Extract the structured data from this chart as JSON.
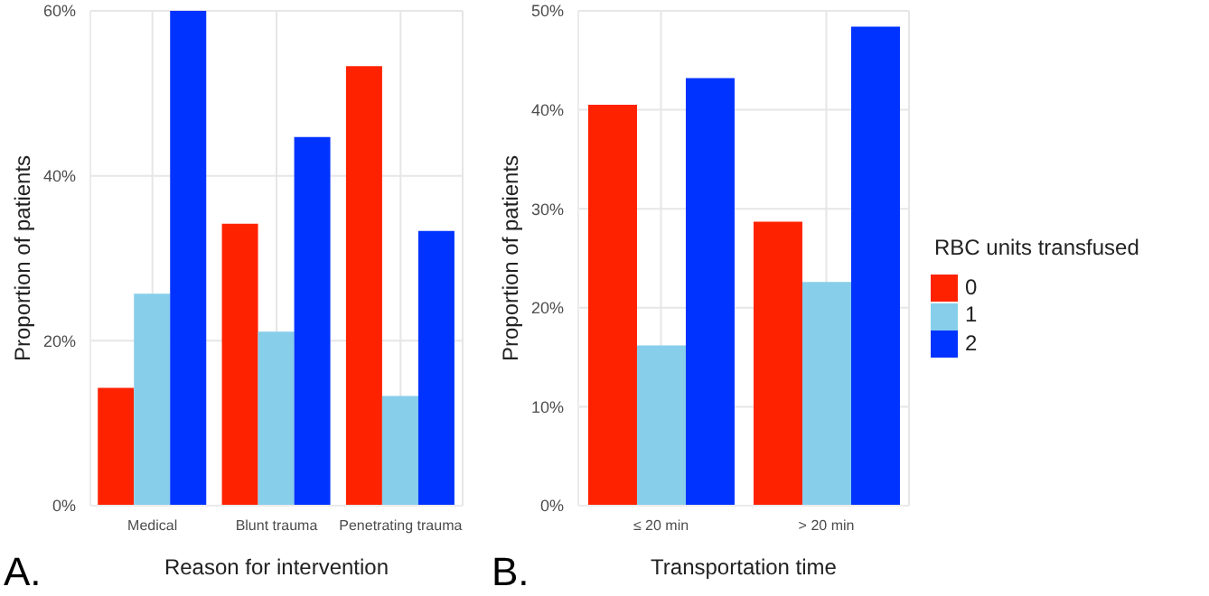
{
  "chart_data": [
    {
      "type": "bar",
      "categories": [
        "Medical",
        "Blunt trauma",
        "Penetrating trauma"
      ],
      "xlabel": "Reason for intervention",
      "ylabel": "Proportion of patients",
      "annotations": [
        "A."
      ],
      "series": [
        {
          "color": "#ff2200",
          "values": [
            14.3,
            34.2,
            53.3
          ]
        },
        {
          "color": "#87ceeb",
          "values": [
            25.7,
            21.1,
            13.3
          ]
        },
        {
          "color": "#0033ff",
          "values": [
            60.0,
            44.7,
            33.3
          ]
        }
      ],
      "ylim": [
        0,
        60
      ],
      "yticks": [
        {
          "value": 0,
          "label": "0%"
        },
        {
          "value": 20,
          "label": "20%"
        },
        {
          "value": 40,
          "label": "40%"
        },
        {
          "value": 60,
          "label": "60%"
        }
      ],
      "grid": true,
      "legend": false
    },
    {
      "type": "bar",
      "categories": [
        "≤ 20 min",
        "> 20 min"
      ],
      "xlabel": "Transportation time",
      "ylabel": "Proportion of patients",
      "annotations": [
        "B."
      ],
      "legend_title": "RBC units transfused",
      "series": [
        {
          "name": "0",
          "color": "#ff2200",
          "values": [
            40.5,
            28.7
          ]
        },
        {
          "name": "1",
          "color": "#87ceeb",
          "values": [
            16.2,
            22.6
          ]
        },
        {
          "name": "2",
          "color": "#0033ff",
          "values": [
            43.2,
            48.4
          ]
        }
      ],
      "ylim": [
        0,
        50
      ],
      "yticks": [
        {
          "value": 0,
          "label": "0%"
        },
        {
          "value": 10,
          "label": "10%"
        },
        {
          "value": 20,
          "label": "20%"
        },
        {
          "value": 30,
          "label": "30%"
        },
        {
          "value": 40,
          "label": "40%"
        },
        {
          "value": 50,
          "label": "50%"
        }
      ],
      "grid": true,
      "legend": "right"
    }
  ]
}
